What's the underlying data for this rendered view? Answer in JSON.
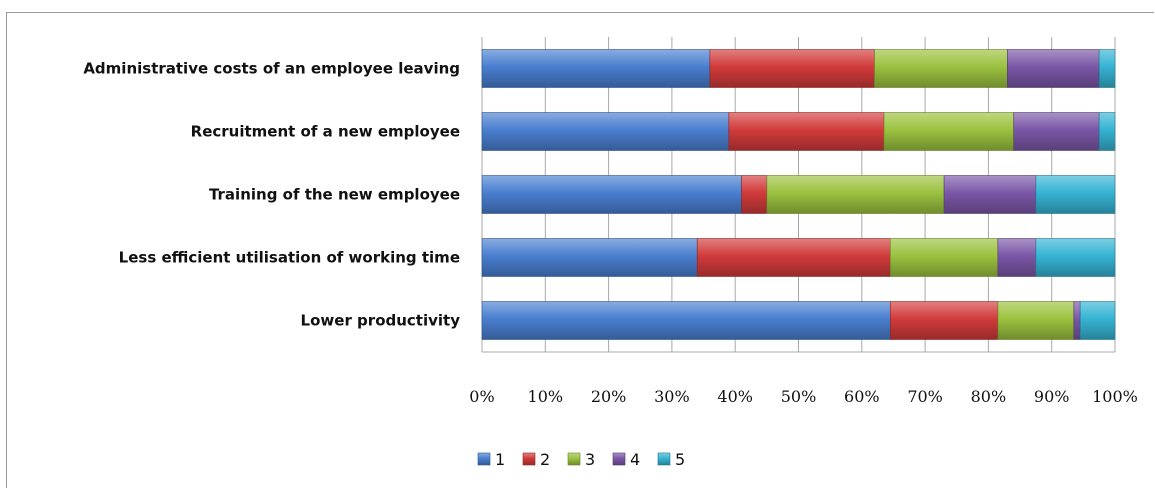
{
  "chart_data": {
    "type": "bar",
    "orientation": "horizontal",
    "stacked": "percent",
    "categories": [
      "Administrative costs of an employee leaving",
      "Recruitment of a new employee",
      "Training of the new employee",
      "Less efficient utilisation of working time",
      "Lower productivity"
    ],
    "series": [
      {
        "name": "1",
        "color": "#4a7fd0",
        "values": [
          36,
          39,
          41,
          34,
          64.5
        ]
      },
      {
        "name": "2",
        "color": "#d23b3b",
        "values": [
          26,
          24.5,
          4,
          30.5,
          17
        ]
      },
      {
        "name": "3",
        "color": "#9bc23f",
        "values": [
          21,
          20.5,
          28,
          17,
          12
        ]
      },
      {
        "name": "4",
        "color": "#7b57a8",
        "values": [
          14.5,
          13.5,
          14.5,
          6,
          1
        ]
      },
      {
        "name": "5",
        "color": "#36b4d4",
        "values": [
          2.5,
          2.5,
          12.5,
          12.5,
          5.5
        ]
      }
    ],
    "x_ticks": [
      "0%",
      "10%",
      "20%",
      "30%",
      "40%",
      "50%",
      "60%",
      "70%",
      "80%",
      "90%",
      "100%"
    ],
    "xlim": [
      0,
      100
    ],
    "grid": true,
    "legend": "bottom-center"
  }
}
